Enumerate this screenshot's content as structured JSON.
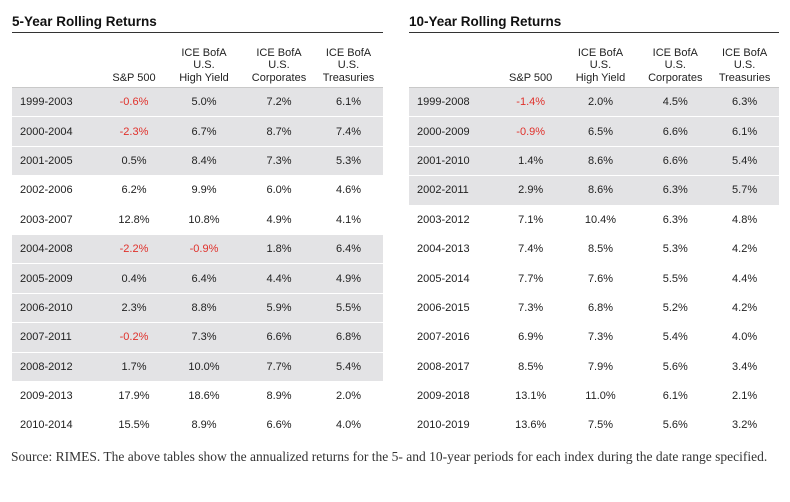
{
  "left_table": {
    "title": "5-Year Rolling Returns",
    "headers": [
      "",
      "S&P 500",
      "ICE BofA\nU.S.\nHigh Yield",
      "ICE BofA\nU.S.\nCorporates",
      "ICE BofA\nU.S.\nTreasuries"
    ],
    "rows": [
      {
        "period": "1999-2003",
        "values": [
          "-0.6%",
          "5.0%",
          "7.2%",
          "6.1%"
        ],
        "shaded": true
      },
      {
        "period": "2000-2004",
        "values": [
          "-2.3%",
          "6.7%",
          "8.7%",
          "7.4%"
        ],
        "shaded": true
      },
      {
        "period": "2001-2005",
        "values": [
          "0.5%",
          "8.4%",
          "7.3%",
          "5.3%"
        ],
        "shaded": true
      },
      {
        "period": "2002-2006",
        "values": [
          "6.2%",
          "9.9%",
          "6.0%",
          "4.6%"
        ],
        "shaded": false
      },
      {
        "period": "2003-2007",
        "values": [
          "12.8%",
          "10.8%",
          "4.9%",
          "4.1%"
        ],
        "shaded": false
      },
      {
        "period": "2004-2008",
        "values": [
          "-2.2%",
          "-0.9%",
          "1.8%",
          "6.4%"
        ],
        "shaded": true
      },
      {
        "period": "2005-2009",
        "values": [
          "0.4%",
          "6.4%",
          "4.4%",
          "4.9%"
        ],
        "shaded": true
      },
      {
        "period": "2006-2010",
        "values": [
          "2.3%",
          "8.8%",
          "5.9%",
          "5.5%"
        ],
        "shaded": true
      },
      {
        "period": "2007-2011",
        "values": [
          "-0.2%",
          "7.3%",
          "6.6%",
          "6.8%"
        ],
        "shaded": true
      },
      {
        "period": "2008-2012",
        "values": [
          "1.7%",
          "10.0%",
          "7.7%",
          "5.4%"
        ],
        "shaded": true
      },
      {
        "period": "2009-2013",
        "values": [
          "17.9%",
          "18.6%",
          "8.9%",
          "2.0%"
        ],
        "shaded": false
      },
      {
        "period": "2010-2014",
        "values": [
          "15.5%",
          "8.9%",
          "6.6%",
          "4.0%"
        ],
        "shaded": false
      }
    ]
  },
  "right_table": {
    "title": "10-Year Rolling Returns",
    "headers": [
      "",
      "S&P 500",
      "ICE BofA\nU.S.\nHigh Yield",
      "ICE BofA\nU.S.\nCorporates",
      "ICE BofA\nU.S.\nTreasuries"
    ],
    "rows": [
      {
        "period": "1999-2008",
        "values": [
          "-1.4%",
          "2.0%",
          "4.5%",
          "6.3%"
        ],
        "shaded": true
      },
      {
        "period": "2000-2009",
        "values": [
          "-0.9%",
          "6.5%",
          "6.6%",
          "6.1%"
        ],
        "shaded": true
      },
      {
        "period": "2001-2010",
        "values": [
          "1.4%",
          "8.6%",
          "6.6%",
          "5.4%"
        ],
        "shaded": true
      },
      {
        "period": "2002-2011",
        "values": [
          "2.9%",
          "8.6%",
          "6.3%",
          "5.7%"
        ],
        "shaded": true
      },
      {
        "period": "2003-2012",
        "values": [
          "7.1%",
          "10.4%",
          "6.3%",
          "4.8%"
        ],
        "shaded": false
      },
      {
        "period": "2004-2013",
        "values": [
          "7.4%",
          "8.5%",
          "5.3%",
          "4.2%"
        ],
        "shaded": false
      },
      {
        "period": "2005-2014",
        "values": [
          "7.7%",
          "7.6%",
          "5.5%",
          "4.4%"
        ],
        "shaded": false
      },
      {
        "period": "2006-2015",
        "values": [
          "7.3%",
          "6.8%",
          "5.2%",
          "4.2%"
        ],
        "shaded": false
      },
      {
        "period": "2007-2016",
        "values": [
          "6.9%",
          "7.3%",
          "5.4%",
          "4.0%"
        ],
        "shaded": false
      },
      {
        "period": "2008-2017",
        "values": [
          "8.5%",
          "7.9%",
          "5.6%",
          "3.4%"
        ],
        "shaded": false
      },
      {
        "period": "2009-2018",
        "values": [
          "13.1%",
          "11.0%",
          "6.1%",
          "2.1%"
        ],
        "shaded": false
      },
      {
        "period": "2010-2019",
        "values": [
          "13.6%",
          "7.5%",
          "5.6%",
          "3.2%"
        ],
        "shaded": false
      }
    ]
  },
  "colors": {
    "negative": "#e0312b",
    "shade": "#e3e3e5"
  },
  "source_note": "Source: RIMES. The above tables show the annualized returns for the 5- and 10-year periods for each index during the date range specified."
}
